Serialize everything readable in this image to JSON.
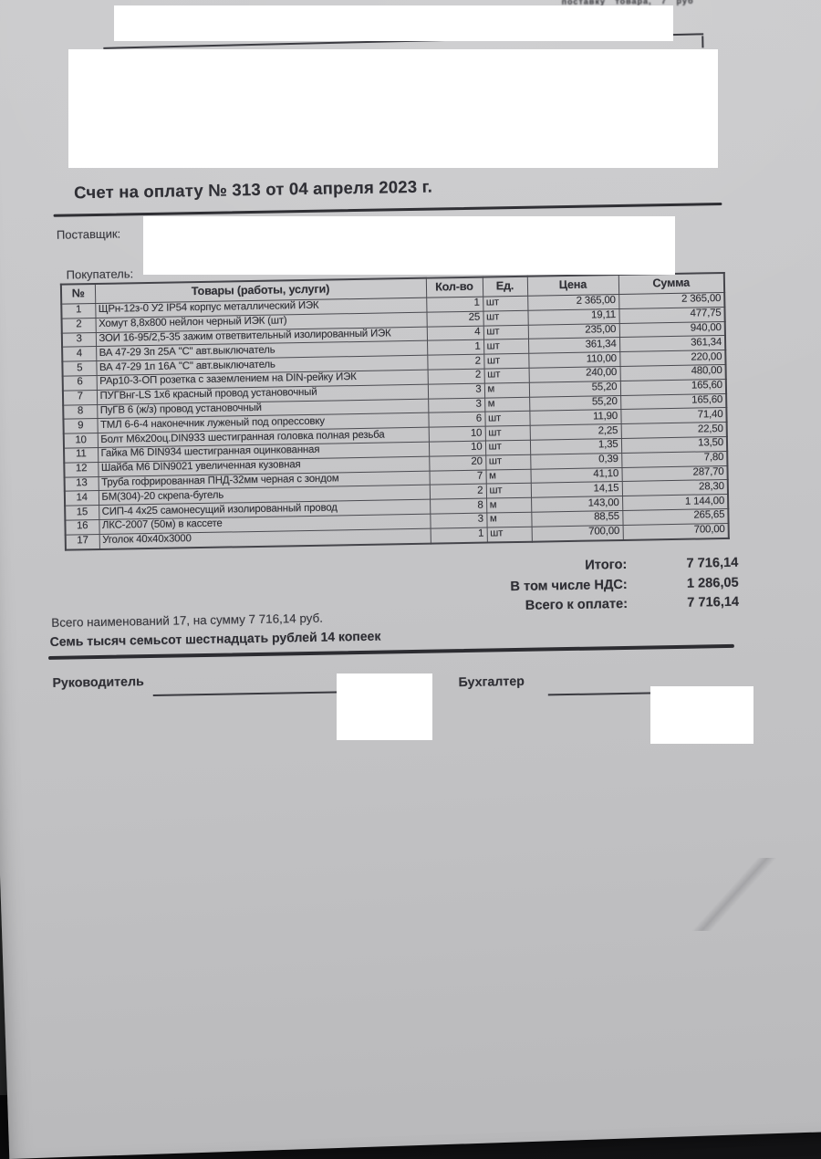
{
  "invoice": {
    "top_strip_fragment": "поставку товара, 7 руб",
    "title": "Счет на оплату № 313 от 04 апреля 2023 г.",
    "supplier_label": "Поставщик:",
    "buyer_label": "Покупатель:",
    "table": {
      "headers": {
        "num": "№",
        "name": "Товары (работы, услуги)",
        "qty": "Кол-во",
        "unit": "Ед.",
        "price": "Цена",
        "sum": "Сумма"
      },
      "rows": [
        {
          "num": "1",
          "name": "ЩРн-12з-0 У2 IP54 корпус металлический ИЭК",
          "qty": "1",
          "unit": "шт",
          "price": "2 365,00",
          "sum": "2 365,00"
        },
        {
          "num": "2",
          "name": "Хомут 8,8х800 нейлон черный ИЭК (шт)",
          "qty": "25",
          "unit": "шт",
          "price": "19,11",
          "sum": "477,75"
        },
        {
          "num": "3",
          "name": "ЗОИ 16-95/2,5-35 зажим ответвительный изолированный ИЭК",
          "qty": "4",
          "unit": "шт",
          "price": "235,00",
          "sum": "940,00"
        },
        {
          "num": "4",
          "name": "ВА 47-29 3п 25А \"С\" авт.выключатель",
          "qty": "1",
          "unit": "шт",
          "price": "361,34",
          "sum": "361,34"
        },
        {
          "num": "5",
          "name": "ВА 47-29 1п 16А \"С\" авт.выключатель",
          "qty": "2",
          "unit": "шт",
          "price": "110,00",
          "sum": "220,00"
        },
        {
          "num": "6",
          "name": "РАр10-3-ОП розетка с заземлением на DIN-рейку ИЭК",
          "qty": "2",
          "unit": "шт",
          "price": "240,00",
          "sum": "480,00"
        },
        {
          "num": "7",
          "name": "ПУГВнг-LS 1х6 красный провод установочный",
          "qty": "3",
          "unit": "м",
          "price": "55,20",
          "sum": "165,60"
        },
        {
          "num": "8",
          "name": "ПуГВ 6 (ж/з) провод установочный",
          "qty": "3",
          "unit": "м",
          "price": "55,20",
          "sum": "165,60"
        },
        {
          "num": "9",
          "name": "ТМЛ 6-6-4 наконечник луженый под опрессовку",
          "qty": "6",
          "unit": "шт",
          "price": "11,90",
          "sum": "71,40"
        },
        {
          "num": "10",
          "name": "Болт М6х20оц.DIN933 шестигранная головка полная резьба",
          "qty": "10",
          "unit": "шт",
          "price": "2,25",
          "sum": "22,50"
        },
        {
          "num": "11",
          "name": "Гайка М6 DIN934 шестигранная оцинкованная",
          "qty": "10",
          "unit": "шт",
          "price": "1,35",
          "sum": "13,50"
        },
        {
          "num": "12",
          "name": "Шайба М6 DIN9021 увеличенная кузовная",
          "qty": "20",
          "unit": "шт",
          "price": "0,39",
          "sum": "7,80"
        },
        {
          "num": "13",
          "name": "Труба гофрированная ПНД-32мм черная с зондом",
          "qty": "7",
          "unit": "м",
          "price": "41,10",
          "sum": "287,70"
        },
        {
          "num": "14",
          "name": "БМ(304)-20 скрепа-бугель",
          "qty": "2",
          "unit": "шт",
          "price": "14,15",
          "sum": "28,30"
        },
        {
          "num": "15",
          "name": "СИП-4 4х25 самонесущий изолированный провод",
          "qty": "8",
          "unit": "м",
          "price": "143,00",
          "sum": "1 144,00"
        },
        {
          "num": "16",
          "name": "ЛКС-2007 (50м) в кассете",
          "qty": "3",
          "unit": "м",
          "price": "88,55",
          "sum": "265,65"
        },
        {
          "num": "17",
          "name": "Уголок 40х40х3000",
          "qty": "1",
          "unit": "шт",
          "price": "700,00",
          "sum": "700,00"
        }
      ]
    },
    "totals": [
      {
        "label": "Итого:",
        "value": "7 716,14"
      },
      {
        "label": "В том числе НДС:",
        "value": "1 286,05"
      },
      {
        "label": "Всего к оплате:",
        "value": "7 716,14"
      }
    ],
    "items_summary": "Всего наименований 17, на сумму 7 716,14 руб.",
    "amount_in_words": "Семь тысяч семьсот шестнадцать рублей 14 копеек",
    "signatures": {
      "director_label": "Руководитель",
      "accountant_label": "Бухгалтер"
    }
  },
  "colors": {
    "paper": "#c7c7c9",
    "ink": "#2f2f35",
    "redaction": "#ffffff",
    "background_dark": "#1c1c1e"
  }
}
